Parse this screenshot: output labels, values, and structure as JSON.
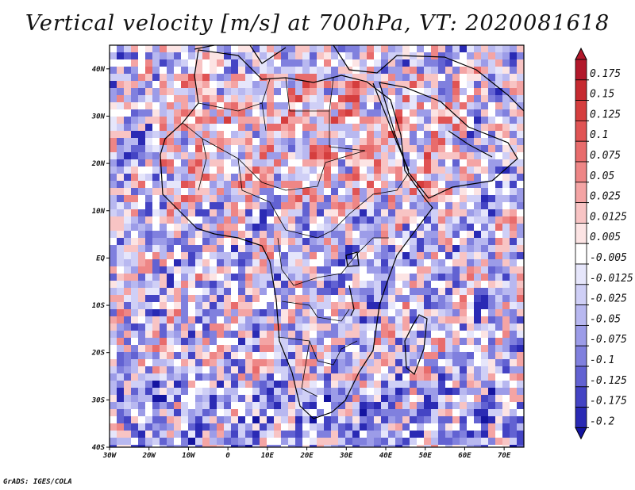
{
  "title": "Vertical velocity [m/s] at 700hPa, VT: 2020081618",
  "credit": "GrADS: IGES/COLA",
  "map": {
    "lon_range": [
      -30,
      75
    ],
    "lat_range": [
      -40,
      45
    ],
    "lon_ticks": [
      "30W",
      "20W",
      "10W",
      "0",
      "10E",
      "20E",
      "30E",
      "40E",
      "50E",
      "60E",
      "70E"
    ],
    "lat_ticks": [
      "40N",
      "30N",
      "20N",
      "10N",
      "EQ",
      "10S",
      "20S",
      "30S",
      "40S"
    ]
  },
  "colorbar": {
    "levels": [
      "0.175",
      "0.15",
      "0.125",
      "0.1",
      "0.075",
      "0.05",
      "0.025",
      "0.0125",
      "0.005",
      "-0.005",
      "-0.0125",
      "-0.025",
      "-0.05",
      "-0.075",
      "-0.1",
      "-0.125",
      "-0.175",
      "-0.2"
    ],
    "colors": [
      "#b2182b",
      "#c62a30",
      "#d53e3e",
      "#e05454",
      "#e86c6c",
      "#ee8686",
      "#f4a4a4",
      "#f8c4c4",
      "#fce4e4",
      "#ffffff",
      "#e6e6fb",
      "#cfcff6",
      "#b8b8f0",
      "#9c9ce8",
      "#8080de",
      "#6262d2",
      "#4444c4",
      "#2a2ab4",
      "#1414a0"
    ]
  }
}
